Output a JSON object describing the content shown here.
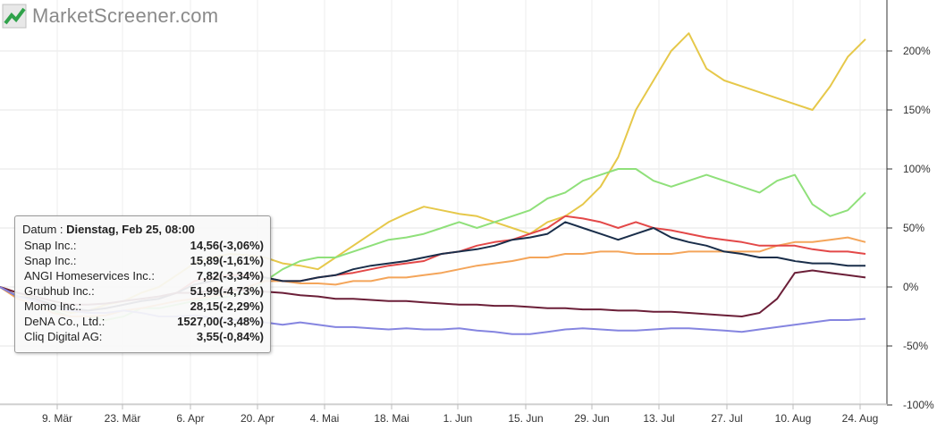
{
  "logo": {
    "text": "MarketScreener.com",
    "icon": "marketscreener-logo-icon"
  },
  "tooltip": {
    "date_label": "Datum : ",
    "date": "Dienstag, Feb 25, 08:00",
    "rows": [
      {
        "name": "Snap Inc.:",
        "value": "14,56(-3,06%)"
      },
      {
        "name": "Snap Inc.:",
        "value": "15,89(-1,61%)"
      },
      {
        "name": "ANGI Homeservices Inc.:",
        "value": "7,82(-3,34%)"
      },
      {
        "name": "Grubhub Inc.:",
        "value": "51,99(-4,73%)"
      },
      {
        "name": "Momo Inc.:",
        "value": "28,15(-2,29%)"
      },
      {
        "name": "DeNA Co., Ltd.:",
        "value": "1527,00(-3,48%)"
      },
      {
        "name": "Cliq Digital AG:",
        "value": "3,55(-0,84%)"
      }
    ]
  },
  "chart_data": {
    "type": "line",
    "x_tick_labels": [
      "9. Mär",
      "23. Mär",
      "6. Apr",
      "20. Apr",
      "4. Mai",
      "18. Mai",
      "1. Jun",
      "15. Jun",
      "29. Jun",
      "13. Jul",
      "27. Jul",
      "10. Aug",
      "24. Aug"
    ],
    "y_tick_labels": [
      "200%",
      "150%",
      "100%",
      "50%",
      "0%",
      "-50%",
      "-100%"
    ],
    "y_ticks": [
      200,
      150,
      100,
      50,
      0,
      -50,
      -100
    ],
    "ylim": [
      -105,
      240
    ],
    "grid": true,
    "x_points": 50,
    "colors": {
      "yellow": "#e6c84a",
      "green": "#8fe07a",
      "orange": "#f4a55a",
      "red": "#e34848",
      "navy": "#1a2e4a",
      "maroon": "#6b1f38",
      "lavender": "#8585e0"
    },
    "series": [
      {
        "color": "#e6c84a",
        "values": [
          0,
          -5,
          -10,
          -18,
          -22,
          -20,
          -15,
          -12,
          -5,
          0,
          10,
          20,
          25,
          28,
          27,
          25,
          20,
          18,
          15,
          25,
          35,
          45,
          55,
          62,
          68,
          65,
          62,
          60,
          55,
          50,
          45,
          55,
          60,
          70,
          85,
          110,
          150,
          175,
          200,
          215,
          185,
          175,
          170,
          165,
          160,
          155,
          150,
          170,
          195,
          210
        ]
      },
      {
        "color": "#8fe07a",
        "values": [
          0,
          -8,
          -12,
          -20,
          -25,
          -25,
          -28,
          -25,
          -18,
          -18,
          -15,
          -12,
          -10,
          -8,
          -5,
          5,
          15,
          22,
          25,
          25,
          30,
          35,
          40,
          42,
          45,
          50,
          55,
          50,
          55,
          60,
          65,
          75,
          80,
          90,
          95,
          100,
          100,
          90,
          85,
          90,
          95,
          90,
          85,
          80,
          90,
          95,
          70,
          60,
          65,
          80
        ]
      },
      {
        "color": "#f4a55a",
        "values": [
          0,
          -10,
          -15,
          -22,
          -25,
          -25,
          -24,
          -20,
          -18,
          -15,
          -12,
          -10,
          -8,
          -5,
          0,
          5,
          5,
          3,
          3,
          2,
          5,
          5,
          8,
          8,
          10,
          12,
          15,
          18,
          20,
          22,
          25,
          25,
          28,
          28,
          30,
          30,
          28,
          28,
          28,
          30,
          30,
          30,
          30,
          30,
          35,
          38,
          38,
          40,
          42,
          38
        ]
      },
      {
        "color": "#e34848",
        "values": [
          0,
          -8,
          -10,
          -18,
          -20,
          -20,
          -18,
          -15,
          -12,
          -10,
          -5,
          5,
          8,
          10,
          10,
          8,
          5,
          5,
          8,
          10,
          12,
          15,
          18,
          20,
          22,
          28,
          30,
          35,
          38,
          40,
          45,
          50,
          60,
          58,
          55,
          50,
          55,
          50,
          48,
          45,
          42,
          40,
          38,
          35,
          35,
          35,
          32,
          30,
          30,
          28
        ]
      },
      {
        "color": "#1a2e4a",
        "values": [
          0,
          -8,
          -10,
          -15,
          -18,
          -20,
          -18,
          -15,
          -12,
          -10,
          -5,
          2,
          5,
          8,
          8,
          8,
          5,
          5,
          8,
          10,
          15,
          18,
          20,
          22,
          25,
          28,
          30,
          32,
          35,
          40,
          42,
          45,
          55,
          50,
          45,
          40,
          45,
          50,
          42,
          38,
          35,
          30,
          28,
          25,
          25,
          22,
          20,
          20,
          18,
          18
        ]
      },
      {
        "color": "#6b1f38",
        "values": [
          0,
          -5,
          -8,
          -12,
          -15,
          -15,
          -14,
          -12,
          -10,
          -8,
          -5,
          -5,
          -3,
          -2,
          -3,
          -4,
          -5,
          -7,
          -8,
          -10,
          -10,
          -11,
          -12,
          -12,
          -13,
          -14,
          -15,
          -15,
          -16,
          -16,
          -17,
          -18,
          -18,
          -19,
          -19,
          -20,
          -20,
          -21,
          -21,
          -22,
          -23,
          -24,
          -25,
          -22,
          -10,
          12,
          14,
          12,
          10,
          8
        ]
      },
      {
        "color": "#8585e0",
        "values": [
          0,
          -8,
          -12,
          -18,
          -20,
          -22,
          -22,
          -20,
          -22,
          -25,
          -25,
          -24,
          -26,
          -28,
          -28,
          -30,
          -32,
          -30,
          -32,
          -34,
          -34,
          -35,
          -36,
          -35,
          -36,
          -36,
          -35,
          -37,
          -38,
          -40,
          -40,
          -38,
          -36,
          -35,
          -36,
          -37,
          -37,
          -36,
          -35,
          -35,
          -36,
          -37,
          -38,
          -36,
          -34,
          -32,
          -30,
          -28,
          -28,
          -27
        ]
      }
    ]
  }
}
